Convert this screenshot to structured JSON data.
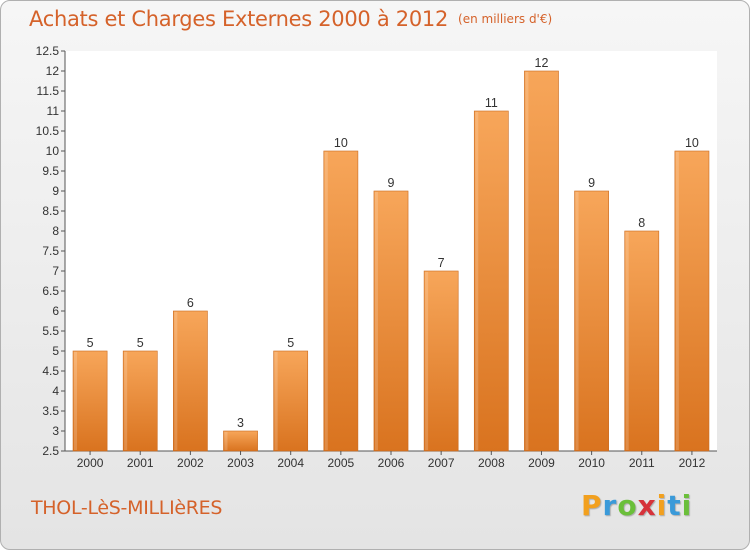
{
  "chart_data": {
    "type": "bar",
    "title": "Achats et Charges Externes 2000 à 2012",
    "unit_note": "(en milliers d'€)",
    "categories": [
      "2000",
      "2001",
      "2002",
      "2003",
      "2004",
      "2005",
      "2006",
      "2007",
      "2008",
      "2009",
      "2010",
      "2011",
      "2012"
    ],
    "values": [
      5,
      5,
      6,
      3,
      5,
      10,
      9,
      7,
      11,
      12,
      9,
      8,
      10
    ],
    "ylim": [
      2.5,
      12.5
    ],
    "yticks": [
      "2.5",
      "3",
      "3.5",
      "4",
      "4.5",
      "5",
      "5.5",
      "6",
      "6.5",
      "7",
      "7.5",
      "8",
      "8.5",
      "9",
      "9.5",
      "10",
      "10.5",
      "11",
      "11.5",
      "12",
      "12.5"
    ],
    "grid": false,
    "legend": "none",
    "colors": {
      "bar_light": "#f7a65a",
      "bar_dark": "#d9731f",
      "title": "#d5622a"
    }
  },
  "commune": "THOL-LèS-MILLIèRES",
  "logo": {
    "letters": [
      "P",
      "r",
      "o",
      "x",
      "i",
      "t",
      "i"
    ],
    "colors": [
      "#f2a01e",
      "#3a9ad9",
      "#6bbf3a",
      "#d6323a",
      "#f2a01e",
      "#3a9ad9",
      "#6bbf3a"
    ]
  }
}
